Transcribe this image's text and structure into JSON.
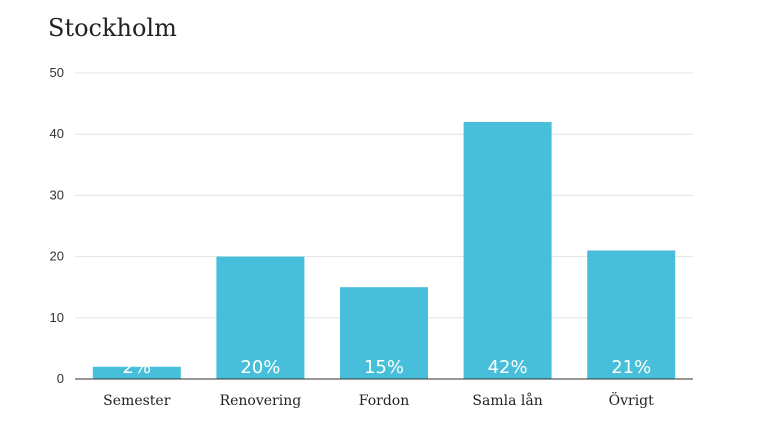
{
  "chart_data": {
    "type": "bar",
    "title": "Stockholm",
    "xlabel": "",
    "ylabel": "",
    "categories": [
      "Semester",
      "Renovering",
      "Fordon",
      "Samla lån",
      "Övrigt"
    ],
    "values": [
      2,
      20,
      15,
      42,
      21
    ],
    "data_labels": [
      "2%",
      "20%",
      "15%",
      "42%",
      "21%"
    ],
    "ylim": [
      0,
      50
    ],
    "yticks": [
      0,
      10,
      20,
      30,
      40,
      50
    ],
    "grid": true,
    "legend": "none",
    "bar_color": "#47bfda"
  }
}
